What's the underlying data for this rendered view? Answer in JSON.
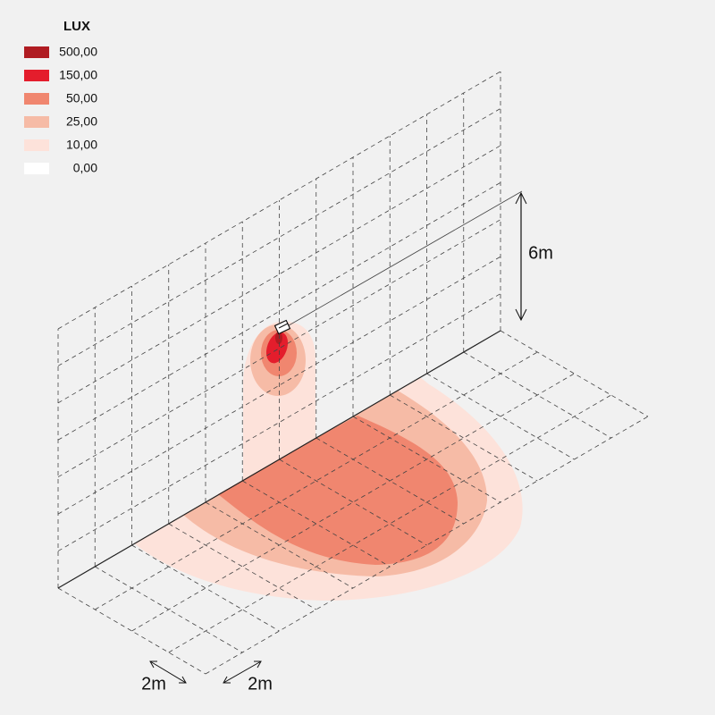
{
  "legend": {
    "title": "LUX",
    "items": [
      {
        "label": "500,00",
        "color": "#b01c22"
      },
      {
        "label": "150,00",
        "color": "#e41d2c"
      },
      {
        "label": "50,00",
        "color": "#f0866f"
      },
      {
        "label": "25,00",
        "color": "#f6bba6"
      },
      {
        "label": "10,00",
        "color": "#fde2da"
      },
      {
        "label": "0,00",
        "color": "#ffffff"
      }
    ]
  },
  "dimensions": {
    "height": "6m",
    "grid_a": "2m",
    "grid_b": "2m"
  }
}
